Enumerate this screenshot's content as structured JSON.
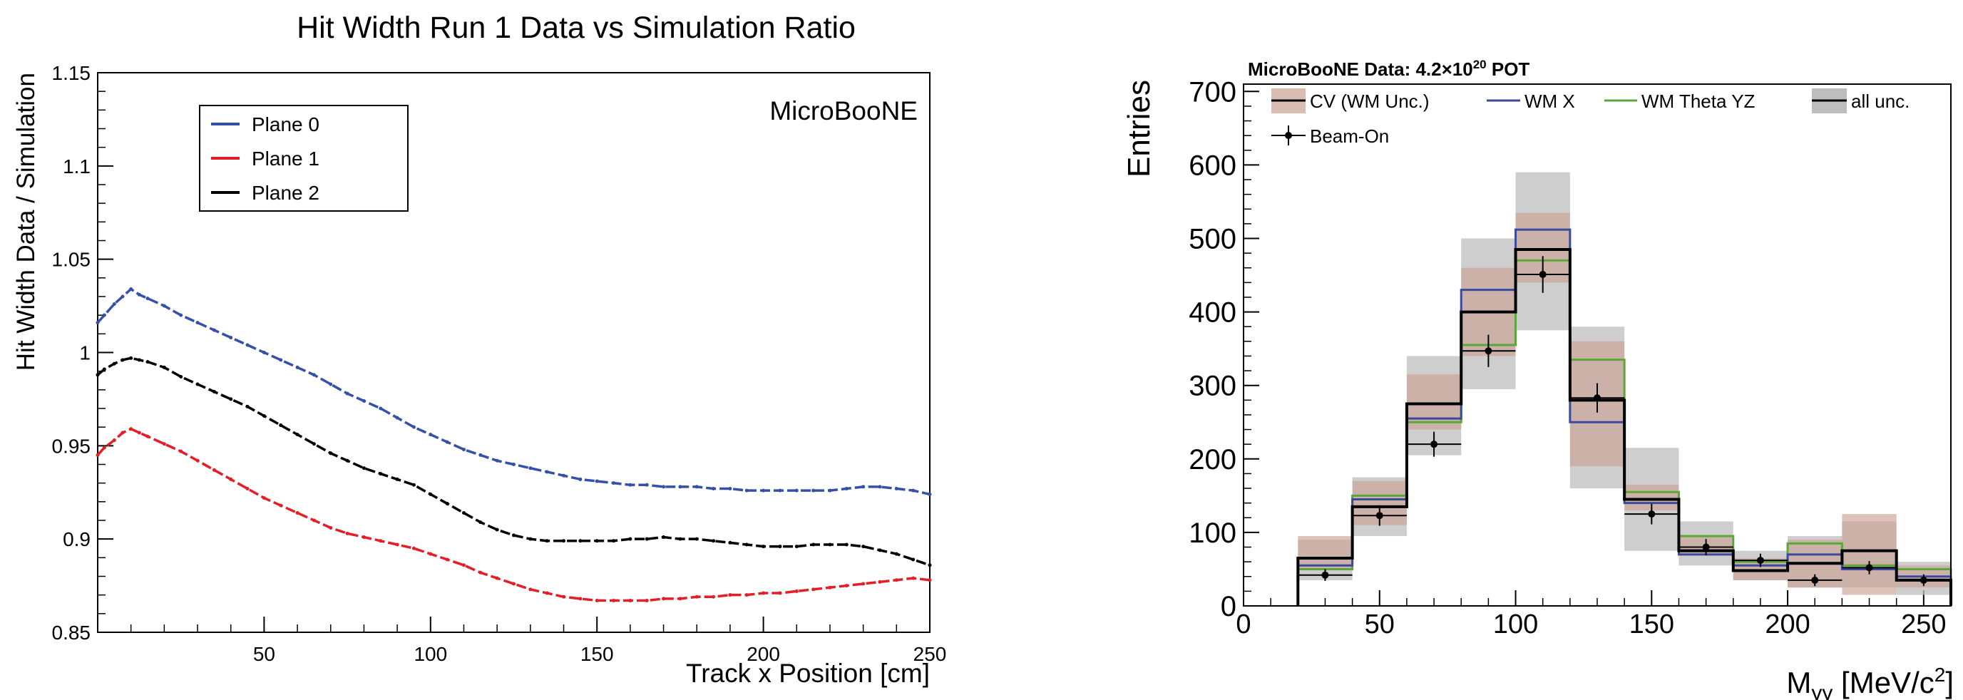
{
  "colors": {
    "plane0": "#3550a8",
    "plane1": "#e21f26",
    "plane2": "#000000",
    "cv_band": "#c9a193",
    "wmx": "#3b4a9c",
    "wmtheta": "#5aa837",
    "allunc": "#bdbdbd",
    "data": "#000000"
  },
  "chart_data": [
    {
      "type": "line",
      "title": "Hit Width Run 1 Data vs Simulation Ratio",
      "xlabel": "Track x Position [cm]",
      "ylabel": "Hit Width Data / Simulation",
      "annotation": "MicroBooNE",
      "xlim": [
        0,
        250
      ],
      "ylim": [
        0.85,
        1.15
      ],
      "xticks": [
        50,
        100,
        150,
        200,
        250
      ],
      "yticks": [
        0.85,
        0.9,
        0.95,
        1,
        1.05,
        1.1,
        1.15
      ],
      "ytick_labels": [
        "0.85",
        "0.9",
        "0.95",
        "1",
        "1.05",
        "1.1",
        "1.15"
      ],
      "legend_placement": "top-left",
      "x": [
        0,
        2,
        5,
        7.5,
        10,
        12.5,
        15,
        20,
        25,
        30,
        35,
        40,
        45,
        50,
        55,
        60,
        65,
        70,
        75,
        80,
        85,
        90,
        95,
        100,
        105,
        110,
        115,
        120,
        125,
        130,
        135,
        140,
        145,
        150,
        155,
        160,
        165,
        170,
        175,
        180,
        185,
        190,
        195,
        200,
        205,
        210,
        215,
        220,
        225,
        230,
        235,
        240,
        245,
        250
      ],
      "series": [
        {
          "name": "Plane 0",
          "color_key": "plane0",
          "values": [
            1.016,
            1.02,
            1.026,
            1.03,
            1.034,
            1.031,
            1.029,
            1.025,
            1.02,
            1.016,
            1.012,
            1.008,
            1.004,
            1.0,
            0.996,
            0.992,
            0.988,
            0.983,
            0.978,
            0.974,
            0.97,
            0.965,
            0.96,
            0.956,
            0.952,
            0.948,
            0.945,
            0.942,
            0.94,
            0.938,
            0.936,
            0.934,
            0.932,
            0.931,
            0.93,
            0.929,
            0.929,
            0.928,
            0.928,
            0.928,
            0.927,
            0.927,
            0.926,
            0.926,
            0.926,
            0.926,
            0.926,
            0.926,
            0.927,
            0.928,
            0.928,
            0.927,
            0.926,
            0.924
          ]
        },
        {
          "name": "Plane 1",
          "color_key": "plane1",
          "values": [
            0.945,
            0.949,
            0.953,
            0.957,
            0.959,
            0.957,
            0.955,
            0.951,
            0.947,
            0.942,
            0.937,
            0.932,
            0.927,
            0.922,
            0.918,
            0.914,
            0.91,
            0.906,
            0.903,
            0.901,
            0.899,
            0.897,
            0.895,
            0.892,
            0.889,
            0.886,
            0.882,
            0.879,
            0.876,
            0.873,
            0.871,
            0.869,
            0.868,
            0.867,
            0.867,
            0.867,
            0.867,
            0.868,
            0.868,
            0.869,
            0.869,
            0.87,
            0.87,
            0.871,
            0.871,
            0.872,
            0.873,
            0.874,
            0.875,
            0.876,
            0.877,
            0.878,
            0.879,
            0.878
          ]
        },
        {
          "name": "Plane 2",
          "color_key": "plane2",
          "values": [
            0.988,
            0.991,
            0.994,
            0.996,
            0.997,
            0.996,
            0.995,
            0.992,
            0.987,
            0.983,
            0.979,
            0.975,
            0.971,
            0.966,
            0.961,
            0.956,
            0.951,
            0.946,
            0.942,
            0.938,
            0.935,
            0.932,
            0.929,
            0.924,
            0.919,
            0.914,
            0.909,
            0.905,
            0.902,
            0.9,
            0.899,
            0.899,
            0.899,
            0.899,
            0.899,
            0.9,
            0.9,
            0.901,
            0.9,
            0.9,
            0.899,
            0.898,
            0.897,
            0.896,
            0.896,
            0.896,
            0.897,
            0.897,
            0.897,
            0.896,
            0.894,
            0.892,
            0.889,
            0.886
          ]
        }
      ]
    },
    {
      "type": "bar",
      "title": "MicroBooNE Data: 4.2×10",
      "title_sup": "20",
      "title_suffix": " POT",
      "xlabel_main": "M",
      "xlabel_sub": "γγ",
      "xlabel_unit": " [MeV/c",
      "xlabel_sup": "2",
      "xlabel_close": "]",
      "ylabel": "Entries",
      "xlim": [
        0,
        260
      ],
      "ylim": [
        0,
        710
      ],
      "xticks": [
        0,
        50,
        100,
        150,
        200,
        250
      ],
      "yticks": [
        0,
        100,
        200,
        300,
        400,
        500,
        600,
        700
      ],
      "legend_placement": "top",
      "bin_edges": [
        20,
        40,
        60,
        80,
        100,
        120,
        140,
        160,
        180,
        200,
        220,
        240,
        260
      ],
      "series": [
        {
          "name": "CV (WM Unc.)",
          "color_key": "cv_band",
          "values": [
            65,
            135,
            275,
            400,
            485,
            280,
            145,
            75,
            48,
            58,
            75,
            35
          ],
          "band_low": [
            50,
            110,
            240,
            340,
            440,
            190,
            130,
            70,
            35,
            25,
            15,
            25
          ],
          "band_high": [
            95,
            170,
            315,
            460,
            535,
            360,
            165,
            95,
            65,
            90,
            125,
            55
          ]
        },
        {
          "name": "WM X",
          "color_key": "wmx",
          "values": [
            55,
            145,
            255,
            430,
            512,
            250,
            140,
            70,
            55,
            70,
            50,
            40
          ]
        },
        {
          "name": "WM Theta YZ",
          "color_key": "wmtheta",
          "values": [
            50,
            150,
            250,
            355,
            470,
            335,
            155,
            95,
            60,
            85,
            55,
            50
          ]
        },
        {
          "name": "all unc.",
          "color_key": "allunc",
          "band_low": [
            35,
            95,
            205,
            295,
            375,
            160,
            75,
            55,
            35,
            25,
            25,
            15
          ],
          "band_high": [
            90,
            175,
            340,
            500,
            590,
            380,
            215,
            115,
            75,
            95,
            115,
            60
          ]
        },
        {
          "name": "Beam-On",
          "color_key": "data",
          "x": [
            30,
            50,
            70,
            90,
            110,
            130,
            150,
            170,
            190,
            210,
            230,
            250
          ],
          "values": [
            42,
            123,
            220,
            347,
            451,
            283,
            125,
            80,
            62,
            35,
            52,
            35
          ],
          "errors": [
            8,
            14,
            17,
            22,
            25,
            20,
            14,
            11,
            9,
            8,
            9,
            8
          ]
        }
      ]
    }
  ]
}
